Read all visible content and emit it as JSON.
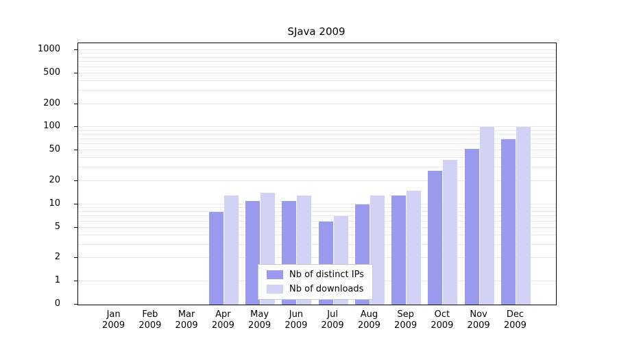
{
  "title": "SJava 2009",
  "chart_data": {
    "type": "bar",
    "title": "SJava 2009",
    "xlabel": "",
    "ylabel": "",
    "y_scale": "symlog",
    "y_ticks": [
      0,
      1,
      2,
      5,
      10,
      20,
      50,
      100,
      200,
      500,
      1000
    ],
    "ylim": [
      0,
      1200
    ],
    "grid": "minor horizontal log gridlines",
    "legend_position": "bottom-center-inside",
    "categories": [
      "Jan 2009",
      "Feb 2009",
      "Mar 2009",
      "Apr 2009",
      "May 2009",
      "Jun 2009",
      "Jul 2009",
      "Aug 2009",
      "Sep 2009",
      "Oct 2009",
      "Nov 2009",
      "Dec 2009"
    ],
    "series": [
      {
        "name": "Nb of distinct IPs",
        "color": "#9999ee",
        "values": [
          0,
          0,
          0,
          8,
          11,
          11,
          6,
          10,
          13,
          27,
          52,
          70
        ]
      },
      {
        "name": "Nb of downloads",
        "color": "#d2d2f7",
        "values": [
          0,
          0,
          0,
          13,
          14,
          13,
          7,
          13,
          15,
          38,
          100,
          100
        ]
      }
    ]
  }
}
